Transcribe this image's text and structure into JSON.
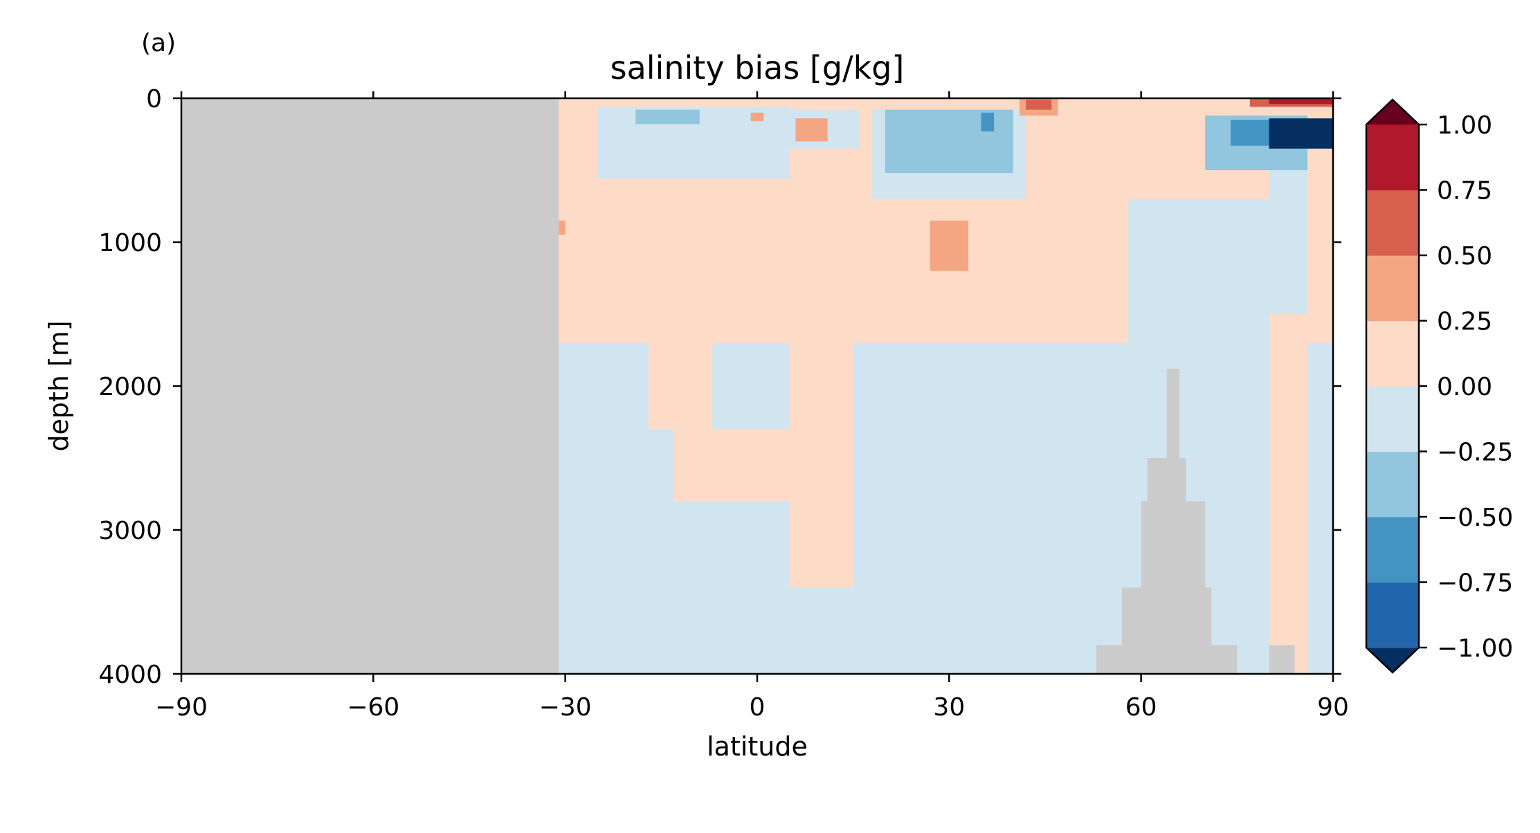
{
  "panel_label": "(a)",
  "chart_data": {
    "type": "heatmap",
    "title": "salinity bias [g/kg]",
    "xlabel": "latitude",
    "ylabel": "depth [m]",
    "xlim": [
      -90,
      90
    ],
    "ylim": [
      4000,
      0
    ],
    "xticks": [
      -90,
      -60,
      -30,
      0,
      30,
      60,
      90
    ],
    "xtick_labels": [
      "−90",
      "−60",
      "−30",
      "0",
      "30",
      "60",
      "90"
    ],
    "yticks": [
      0,
      1000,
      2000,
      3000,
      4000
    ],
    "ytick_labels": [
      "0",
      "1000",
      "2000",
      "3000",
      "4000"
    ],
    "colorbar": {
      "levels": [
        -1.0,
        -0.75,
        -0.5,
        -0.25,
        0.0,
        0.25,
        0.5,
        0.75,
        1.0
      ],
      "tick_labels": [
        "1.00",
        "0.75",
        "0.50",
        "0.25",
        "0.00",
        "−0.25",
        "−0.50",
        "−0.75",
        "−1.00"
      ],
      "colors": [
        "#053061",
        "#2166ac",
        "#4393c3",
        "#92c5de",
        "#d1e5f0",
        "#fddbc7",
        "#f4a582",
        "#d6604d",
        "#b2182b",
        "#67001f"
      ],
      "extend": "both",
      "cell_colors": {
        "minus_10": "#063264",
        "minus_075": "#2468ac",
        "minus_05": "#559fcb",
        "minus_025": "#a9d0e4",
        "minus_0": "#e0ebf2",
        "plus_0": "#f9e5dd",
        "plus_025": "#f7b999",
        "plus_05": "#de7059",
        "plus_075": "#b41f2e",
        "plus_10": "#6a0020"
      }
    },
    "land_color": "#cbcbcb",
    "regions": [
      {
        "value": "land",
        "lat": [
          -90,
          -31
        ],
        "depth": [
          0,
          4000
        ]
      },
      {
        "value": 0.1,
        "lat": [
          -31,
          90
        ],
        "depth": [
          0,
          4000
        ]
      },
      {
        "value": -0.1,
        "lat": [
          -31,
          -17
        ],
        "depth": [
          1700,
          4000
        ]
      },
      {
        "value": -0.1,
        "lat": [
          -17,
          -13
        ],
        "depth": [
          2300,
          4000
        ]
      },
      {
        "value": -0.1,
        "lat": [
          -13,
          5
        ],
        "depth": [
          2800,
          4000
        ]
      },
      {
        "value": -0.1,
        "lat": [
          -7,
          5
        ],
        "depth": [
          1700,
          2300
        ]
      },
      {
        "value": -0.1,
        "lat": [
          5,
          15
        ],
        "depth": [
          3400,
          4000
        ]
      },
      {
        "value": -0.1,
        "lat": [
          15,
          58
        ],
        "depth": [
          1700,
          4000
        ]
      },
      {
        "value": -0.1,
        "lat": [
          58,
          80
        ],
        "depth": [
          700,
          4000
        ]
      },
      {
        "value": -0.1,
        "lat": [
          80,
          86
        ],
        "depth": [
          500,
          1500
        ]
      },
      {
        "value": -0.1,
        "lat": [
          86,
          90
        ],
        "depth": [
          1700,
          4000
        ]
      },
      {
        "value": -0.1,
        "lat": [
          -25,
          5
        ],
        "depth": [
          60,
          560
        ]
      },
      {
        "value": -0.1,
        "lat": [
          5,
          16
        ],
        "depth": [
          80,
          350
        ]
      },
      {
        "value": -0.1,
        "lat": [
          18,
          42
        ],
        "depth": [
          80,
          700
        ]
      },
      {
        "value": -0.3,
        "lat": [
          -19,
          -9
        ],
        "depth": [
          80,
          180
        ]
      },
      {
        "value": -0.3,
        "lat": [
          20,
          40
        ],
        "depth": [
          80,
          520
        ]
      },
      {
        "value": -0.6,
        "lat": [
          35,
          37
        ],
        "depth": [
          100,
          230
        ]
      },
      {
        "value": -0.3,
        "lat": [
          70,
          86
        ],
        "depth": [
          120,
          500
        ]
      },
      {
        "value": -0.6,
        "lat": [
          74,
          84
        ],
        "depth": [
          150,
          330
        ]
      },
      {
        "value": -1.1,
        "lat": [
          80,
          90
        ],
        "depth": [
          140,
          350
        ]
      },
      {
        "value": 0.3,
        "lat": [
          6,
          11
        ],
        "depth": [
          140,
          300
        ]
      },
      {
        "value": 0.3,
        "lat": [
          -1,
          1
        ],
        "depth": [
          100,
          160
        ]
      },
      {
        "value": 0.3,
        "lat": [
          27,
          33
        ],
        "depth": [
          850,
          1200
        ]
      },
      {
        "value": 0.3,
        "lat": [
          -31,
          -30
        ],
        "depth": [
          850,
          950
        ]
      },
      {
        "value": 0.3,
        "lat": [
          41,
          47
        ],
        "depth": [
          0,
          120
        ]
      },
      {
        "value": 0.6,
        "lat": [
          42,
          46
        ],
        "depth": [
          10,
          80
        ]
      },
      {
        "value": 0.6,
        "lat": [
          77,
          90
        ],
        "depth": [
          0,
          60
        ]
      },
      {
        "value": 0.9,
        "lat": [
          80,
          90
        ],
        "depth": [
          0,
          40
        ]
      },
      {
        "value": "land",
        "lat": [
          53,
          75
        ],
        "depth": [
          3800,
          4000
        ]
      },
      {
        "value": "land",
        "lat": [
          57,
          71
        ],
        "depth": [
          3400,
          3800
        ]
      },
      {
        "value": "land",
        "lat": [
          60,
          70
        ],
        "depth": [
          2800,
          3400
        ]
      },
      {
        "value": "land",
        "lat": [
          61,
          67
        ],
        "depth": [
          2500,
          2800
        ]
      },
      {
        "value": "land",
        "lat": [
          64,
          66
        ],
        "depth": [
          1880,
          2500
        ]
      },
      {
        "value": "land",
        "lat": [
          80,
          84
        ],
        "depth": [
          3800,
          4000
        ]
      }
    ]
  }
}
